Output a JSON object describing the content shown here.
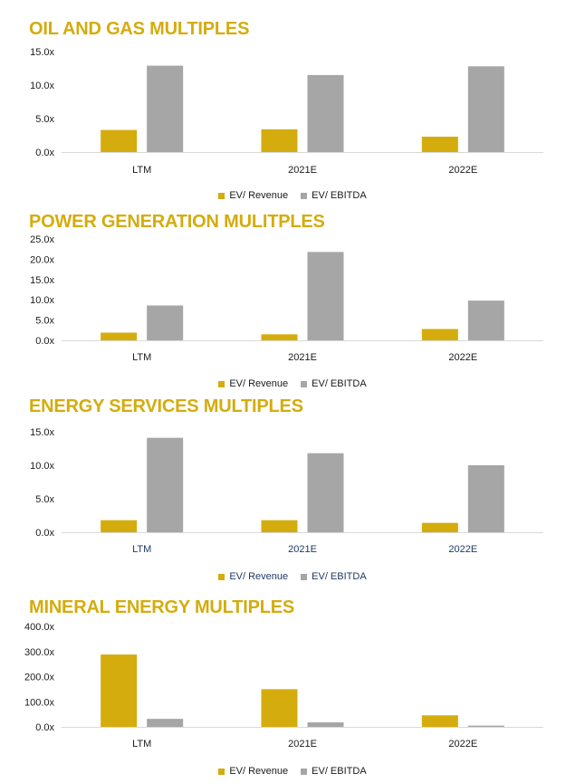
{
  "colors": {
    "revenue": "#D4AC0D",
    "ebitda": "#A6A6A6",
    "title": "#D4AC0D",
    "axis": "#d9d9d9"
  },
  "chart_data": [
    {
      "type": "bar",
      "title": "OIL AND GAS MULTIPLES",
      "categories": [
        "LTM",
        "2021E",
        "2022E"
      ],
      "series": [
        {
          "name": "EV/ Revenue",
          "values": [
            3.3,
            3.4,
            2.3
          ]
        },
        {
          "name": "EV/ EBITDA",
          "values": [
            12.9,
            11.5,
            12.8
          ]
        }
      ],
      "ylim": [
        0,
        15
      ],
      "yticks": [
        "0.0x",
        "5.0x",
        "10.0x",
        "15.0x"
      ],
      "legend": "bottom"
    },
    {
      "type": "bar",
      "title": "POWER GENERATION MULITPLES",
      "categories": [
        "LTM",
        "2021E",
        "2022E"
      ],
      "series": [
        {
          "name": "EV/ Revenue",
          "values": [
            1.9,
            1.5,
            2.8
          ]
        },
        {
          "name": "EV/ EBITDA",
          "values": [
            8.6,
            21.8,
            9.8
          ]
        }
      ],
      "ylim": [
        0,
        25
      ],
      "yticks": [
        "0.0x",
        "5.0x",
        "10.0x",
        "15.0x",
        "20.0x",
        "25.0x"
      ],
      "legend": "bottom"
    },
    {
      "type": "bar",
      "title": "ENERGY SERVICES MULTIPLES",
      "categories": [
        "LTM",
        "2021E",
        "2022E"
      ],
      "series": [
        {
          "name": "EV/ Revenue",
          "values": [
            1.8,
            1.8,
            1.4
          ]
        },
        {
          "name": "EV/ EBITDA",
          "values": [
            14.1,
            11.8,
            10.0
          ]
        }
      ],
      "ylim": [
        0,
        15
      ],
      "yticks": [
        "0.0x",
        "5.0x",
        "10.0x",
        "15.0x"
      ],
      "legend": "bottom"
    },
    {
      "type": "bar",
      "title": "MINERAL ENERGY MULTIPLES",
      "categories": [
        "LTM",
        "2021E",
        "2022E"
      ],
      "series": [
        {
          "name": "EV/ Revenue",
          "values": [
            288,
            150,
            46
          ]
        },
        {
          "name": "EV/ EBITDA",
          "values": [
            32,
            18,
            5
          ]
        }
      ],
      "ylim": [
        0,
        400
      ],
      "yticks": [
        "0.0x",
        "100.0x",
        "200.0x",
        "300.0x",
        "400.0x"
      ],
      "legend": "bottom"
    }
  ]
}
